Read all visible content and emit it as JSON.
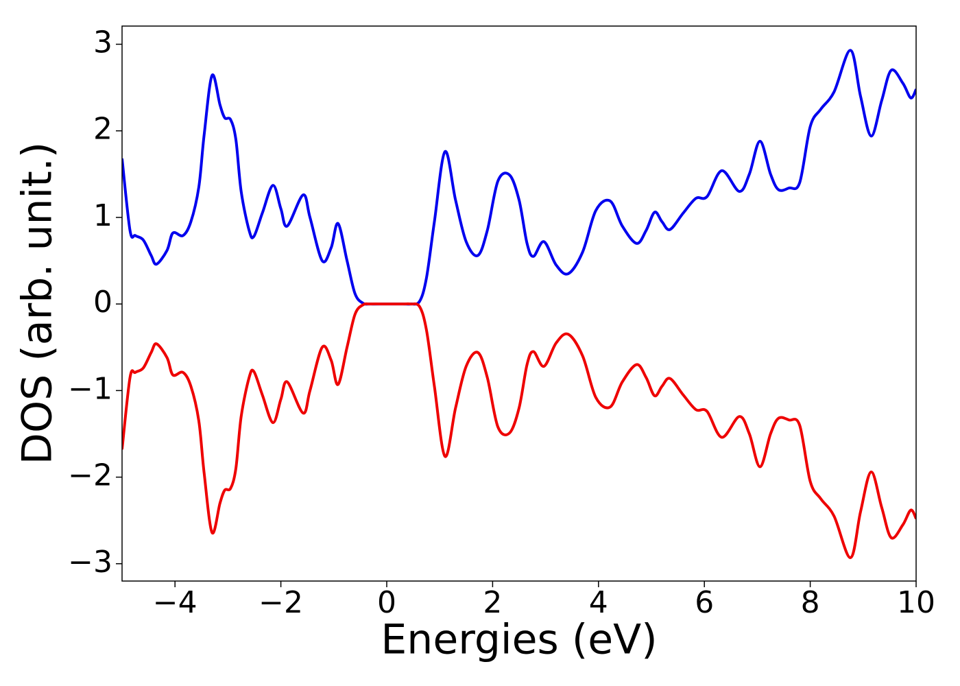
{
  "chart_data": {
    "type": "line",
    "x_label": "Energies (eV)",
    "y_label": "DOS (arb. unit.)",
    "x": [
      -5.0,
      -4.85,
      -4.75,
      -4.6,
      -4.45,
      -4.35,
      -4.15,
      -4.04,
      -3.85,
      -3.7,
      -3.55,
      -3.45,
      -3.3,
      -3.15,
      -3.06,
      -2.95,
      -2.85,
      -2.75,
      -2.6,
      -2.51,
      -2.35,
      -2.15,
      -2.0,
      -1.88,
      -1.58,
      -1.45,
      -1.22,
      -1.05,
      -0.92,
      -0.75,
      -0.6,
      -0.45,
      -0.3,
      0.0,
      0.3,
      0.45,
      0.62,
      0.75,
      0.9,
      1.1,
      1.3,
      1.5,
      1.72,
      1.9,
      2.1,
      2.32,
      2.5,
      2.65,
      2.77,
      2.97,
      3.2,
      3.43,
      3.7,
      3.95,
      4.22,
      4.45,
      4.72,
      4.9,
      5.06,
      5.2,
      5.35,
      5.6,
      5.84,
      6.05,
      6.33,
      6.66,
      6.85,
      7.05,
      7.25,
      7.4,
      7.6,
      7.8,
      8.0,
      8.2,
      8.45,
      8.76,
      8.95,
      9.15,
      9.35,
      9.53,
      9.75,
      9.9,
      10.0
    ],
    "series": [
      {
        "color": "#0000ee",
        "values": [
          1.68,
          0.85,
          0.79,
          0.74,
          0.56,
          0.46,
          0.62,
          0.82,
          0.79,
          0.95,
          1.35,
          1.95,
          2.64,
          2.3,
          2.15,
          2.13,
          1.9,
          1.3,
          0.85,
          0.78,
          1.05,
          1.37,
          1.1,
          0.9,
          1.26,
          1.0,
          0.5,
          0.65,
          0.93,
          0.5,
          0.12,
          0.01,
          0,
          0,
          0,
          0,
          0.03,
          0.3,
          0.95,
          1.76,
          1.2,
          0.72,
          0.56,
          0.85,
          1.42,
          1.49,
          1.2,
          0.7,
          0.55,
          0.72,
          0.45,
          0.35,
          0.6,
          1.08,
          1.19,
          0.9,
          0.7,
          0.85,
          1.06,
          0.95,
          0.86,
          1.05,
          1.22,
          1.24,
          1.54,
          1.3,
          1.5,
          1.88,
          1.5,
          1.32,
          1.34,
          1.4,
          2.05,
          2.25,
          2.45,
          2.93,
          2.4,
          1.94,
          2.35,
          2.7,
          2.55,
          2.38,
          2.48
        ]
      },
      {
        "color": "#ee0000",
        "values": [
          -1.68,
          -0.85,
          -0.79,
          -0.74,
          -0.56,
          -0.46,
          -0.62,
          -0.82,
          -0.79,
          -0.95,
          -1.35,
          -1.95,
          -2.64,
          -2.3,
          -2.15,
          -2.13,
          -1.9,
          -1.3,
          -0.85,
          -0.78,
          -1.05,
          -1.37,
          -1.1,
          -0.9,
          -1.26,
          -1.0,
          -0.5,
          -0.65,
          -0.93,
          -0.5,
          -0.12,
          -0.01,
          0,
          0,
          0,
          0,
          -0.03,
          -0.3,
          -0.95,
          -1.76,
          -1.2,
          -0.72,
          -0.56,
          -0.85,
          -1.42,
          -1.49,
          -1.2,
          -0.7,
          -0.55,
          -0.72,
          -0.45,
          -0.35,
          -0.6,
          -1.08,
          -1.19,
          -0.9,
          -0.7,
          -0.85,
          -1.06,
          -0.95,
          -0.86,
          -1.05,
          -1.22,
          -1.24,
          -1.54,
          -1.3,
          -1.5,
          -1.88,
          -1.5,
          -1.32,
          -1.34,
          -1.4,
          -2.05,
          -2.25,
          -2.45,
          -2.93,
          -2.4,
          -1.94,
          -2.35,
          -2.7,
          -2.55,
          -2.38,
          -2.48
        ]
      }
    ],
    "xlim": [
      -5,
      10
    ],
    "xticks": [
      {
        "value": -4,
        "label": "−4"
      },
      {
        "value": -2,
        "label": "−2"
      },
      0,
      2,
      4,
      6,
      8,
      10
    ],
    "ylim": [
      -3.2,
      3.21
    ],
    "yticks": [
      {
        "value": -3,
        "label": "−3"
      },
      {
        "value": -2,
        "label": "−2"
      },
      {
        "value": -1,
        "label": "−1"
      },
      0,
      1,
      2,
      3
    ],
    "grid": false
  }
}
